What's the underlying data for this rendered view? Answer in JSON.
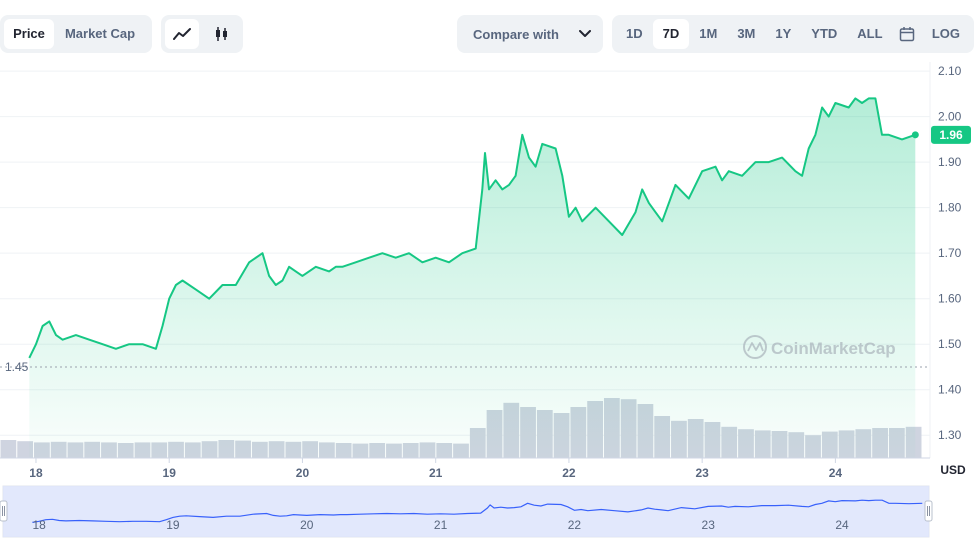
{
  "toolbar": {
    "metric_tabs": [
      "Price",
      "Market Cap"
    ],
    "active_metric": "Price",
    "chart_styles": [
      "line-chart-icon",
      "candlestick-icon"
    ],
    "compare_label": "Compare with",
    "ranges": [
      "1D",
      "7D",
      "1M",
      "3M",
      "1Y",
      "YTD",
      "ALL"
    ],
    "active_range": "7D",
    "calendar_icon": "calendar-icon",
    "log_label": "LOG"
  },
  "colors": {
    "line": "#16c784",
    "area_top": "#16c784",
    "volume_bar": "#cfd4e0",
    "navigator_fill": "#dde3fb",
    "navigator_line": "#3861fb",
    "badge": "#16c784"
  },
  "watermark": "CoinMarketCap",
  "chart_data": {
    "type": "line",
    "currency_label": "USD",
    "ylim": [
      1.25,
      2.12
    ],
    "yticks": [
      "2.10",
      "2.00",
      "1.90",
      "1.80",
      "1.70",
      "1.60",
      "1.50",
      "1.40",
      "1.30"
    ],
    "ytick_values": [
      2.1,
      2.0,
      1.9,
      1.8,
      1.7,
      1.6,
      1.5,
      1.4,
      1.3
    ],
    "xticks": [
      "18",
      "19",
      "20",
      "21",
      "22",
      "23",
      "24"
    ],
    "xtick_values": [
      18,
      19,
      20,
      21,
      22,
      23,
      24
    ],
    "xlim": [
      17.73,
      24.65
    ],
    "current_price": "1.96",
    "current_value": 1.96,
    "reference_line_label": "1.45",
    "reference_value": 1.45,
    "grid": true,
    "series": [
      {
        "x": [
          17.95,
          18.0,
          18.05,
          18.1,
          18.15,
          18.2,
          18.3,
          18.4,
          18.5,
          18.6,
          18.7,
          18.8,
          18.9,
          18.95,
          19.0,
          19.05,
          19.1,
          19.2,
          19.3,
          19.4,
          19.5,
          19.6,
          19.7,
          19.75,
          19.8,
          19.85,
          19.9,
          19.95,
          20.0,
          20.1,
          20.2,
          20.25,
          20.3,
          20.4,
          20.5,
          20.6,
          20.7,
          20.8,
          20.9,
          21.0,
          21.1,
          21.2,
          21.3,
          21.35,
          21.37,
          21.4,
          21.45,
          21.5,
          21.55,
          21.6,
          21.65,
          21.7,
          21.75,
          21.8,
          21.9,
          21.95,
          22.0,
          22.05,
          22.1,
          22.2,
          22.3,
          22.4,
          22.5,
          22.55,
          22.6,
          22.65,
          22.7,
          22.8,
          22.9,
          23.0,
          23.1,
          23.15,
          23.2,
          23.3,
          23.4,
          23.5,
          23.6,
          23.7,
          23.75,
          23.8,
          23.85,
          23.9,
          23.95,
          24.0,
          24.1,
          24.15,
          24.2,
          24.25,
          24.3,
          24.35,
          24.4,
          24.5,
          24.6
        ],
        "y": [
          1.47,
          1.5,
          1.54,
          1.55,
          1.52,
          1.51,
          1.52,
          1.51,
          1.5,
          1.49,
          1.5,
          1.5,
          1.49,
          1.54,
          1.6,
          1.63,
          1.64,
          1.62,
          1.6,
          1.63,
          1.63,
          1.68,
          1.7,
          1.65,
          1.63,
          1.64,
          1.67,
          1.66,
          1.65,
          1.67,
          1.66,
          1.67,
          1.67,
          1.68,
          1.69,
          1.7,
          1.69,
          1.7,
          1.68,
          1.69,
          1.68,
          1.7,
          1.71,
          1.84,
          1.92,
          1.84,
          1.86,
          1.84,
          1.85,
          1.87,
          1.96,
          1.91,
          1.89,
          1.94,
          1.93,
          1.87,
          1.78,
          1.8,
          1.77,
          1.8,
          1.77,
          1.74,
          1.79,
          1.84,
          1.81,
          1.79,
          1.77,
          1.85,
          1.82,
          1.88,
          1.89,
          1.86,
          1.88,
          1.87,
          1.9,
          1.9,
          1.91,
          1.88,
          1.87,
          1.93,
          1.96,
          2.02,
          2.0,
          2.03,
          2.02,
          2.04,
          2.03,
          2.04,
          2.04,
          1.96,
          1.96,
          1.95,
          1.96
        ]
      }
    ],
    "volume": [
      0.3,
      0.28,
      0.26,
      0.27,
      0.26,
      0.27,
      0.26,
      0.25,
      0.26,
      0.26,
      0.27,
      0.26,
      0.28,
      0.3,
      0.29,
      0.27,
      0.28,
      0.27,
      0.28,
      0.26,
      0.25,
      0.24,
      0.25,
      0.24,
      0.25,
      0.26,
      0.25,
      0.24,
      0.5,
      0.8,
      0.92,
      0.85,
      0.8,
      0.75,
      0.85,
      0.95,
      1.0,
      0.98,
      0.9,
      0.7,
      0.62,
      0.65,
      0.6,
      0.52,
      0.48,
      0.46,
      0.45,
      0.43,
      0.38,
      0.44,
      0.46,
      0.48,
      0.5,
      0.5,
      0.52
    ]
  }
}
